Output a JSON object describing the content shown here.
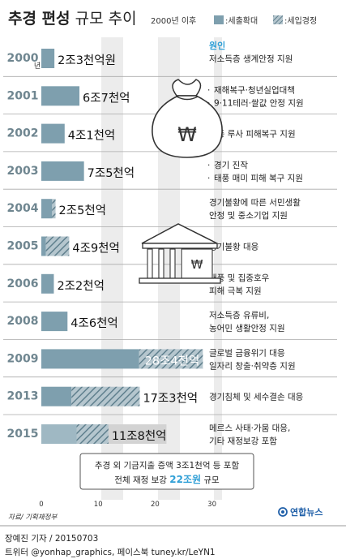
{
  "header": {
    "title_bold": "추경 편성",
    "title_rest": " 규모 추이",
    "period_note": "2000년 이후",
    "legend": [
      {
        "label": ":세출확대",
        "pattern": "solid"
      },
      {
        "label": ":세입경정",
        "pattern": "hatched"
      }
    ],
    "reason_heading": "원인"
  },
  "chart_data": {
    "type": "bar",
    "title": "추경 편성 규모 추이",
    "subtitle": "2000년 이후",
    "xlim": [
      0,
      30
    ],
    "x_ticks": [
      "0",
      "10",
      "20",
      "30"
    ],
    "unit": "조원",
    "series": [
      {
        "name": ":세출확대",
        "pattern": "solid"
      },
      {
        "name": ":세입경정",
        "pattern": "hatched"
      }
    ],
    "rows": [
      {
        "year": "2000",
        "suffix": "년",
        "value": 2.3,
        "revenue_part": 0,
        "label": "2조3천억원",
        "reasons": [
          "저소득층 생계안정 지원"
        ],
        "bullets": false
      },
      {
        "year": "2001",
        "suffix": "",
        "value": 6.7,
        "revenue_part": 0,
        "label": "6조7천억",
        "reasons": [
          "재해복구·청년실업대책",
          "9·11테러·쌀값 안정 지원"
        ],
        "bullets": true
      },
      {
        "year": "2002",
        "suffix": "",
        "value": 4.1,
        "revenue_part": 0,
        "label": "4조1천억",
        "reasons": [
          "태풍 루사 피해복구 지원"
        ],
        "bullets": false
      },
      {
        "year": "2003",
        "suffix": "",
        "value": 7.5,
        "revenue_part": 0,
        "label": "7조5천억",
        "reasons": [
          "경기 진작",
          "태풍 매미 피해 복구 지원"
        ],
        "bullets": true
      },
      {
        "year": "2004",
        "suffix": "",
        "value": 2.5,
        "revenue_part": 0.6,
        "label": "2조5천억",
        "reasons": [
          "경기불황에 따른 서민생활",
          "안정 및 중소기업 지원"
        ],
        "bullets": false
      },
      {
        "year": "2005",
        "suffix": "",
        "value": 4.9,
        "revenue_part": 4.1,
        "label": "4조9천억",
        "reasons": [
          "경기불황 대응"
        ],
        "bullets": false
      },
      {
        "year": "2006",
        "suffix": "",
        "value": 2.2,
        "revenue_part": 0,
        "label": "2조2천억",
        "reasons": [
          "태풍 및 집중호우",
          "피해 극복 지원"
        ],
        "bullets": false
      },
      {
        "year": "2008",
        "suffix": "",
        "value": 4.6,
        "revenue_part": 0,
        "label": "4조6천억",
        "reasons": [
          "저소득층 유류비,",
          "농어민 생활안정 지원"
        ],
        "bullets": false
      },
      {
        "year": "2009",
        "suffix": "",
        "value": 28.4,
        "revenue_part": 11.2,
        "label": "28조4천억",
        "reasons": [
          "글로벌 금융위기 대응",
          "일자리 창출·취약층 지원"
        ],
        "bullets": false
      },
      {
        "year": "2013",
        "suffix": "",
        "value": 17.3,
        "revenue_part": 12.0,
        "label": "17조3천억",
        "reasons": [
          "경기침체 및 세수결손 대응"
        ],
        "bullets": false
      },
      {
        "year": "2015",
        "suffix": "",
        "value": 11.8,
        "revenue_part": 5.6,
        "label": "11조8천억",
        "reasons": [
          "메르스 사태·가뭄 대응,",
          "기타 재정보강 포함"
        ],
        "bullets": false
      }
    ],
    "annotation": {
      "line1": "추경 외 기금지출 증액 3조1천억 등 포함",
      "line2_prefix": "전체 재정 보강 ",
      "line2_highlight": "22조원",
      "line2_suffix": " 규모",
      "extension_value": 22.0
    },
    "colors": {
      "bar": "#7e9fae",
      "hatch_bg": "#b5c6ce",
      "hatch_line": "#5f7f8d",
      "bar_2015": "#9fb8c3",
      "extension": "#d3d3d3",
      "year": "#6f8690",
      "highlight": "#2f9fd6"
    }
  },
  "footer": {
    "source": "자료/ 기획재정부",
    "byline": "장예진 기자 / 20150703",
    "social": "트위터 @yonhap_graphics, 페이스북 tuney.kr/LeYN1",
    "logo_text": "연합뉴스"
  }
}
